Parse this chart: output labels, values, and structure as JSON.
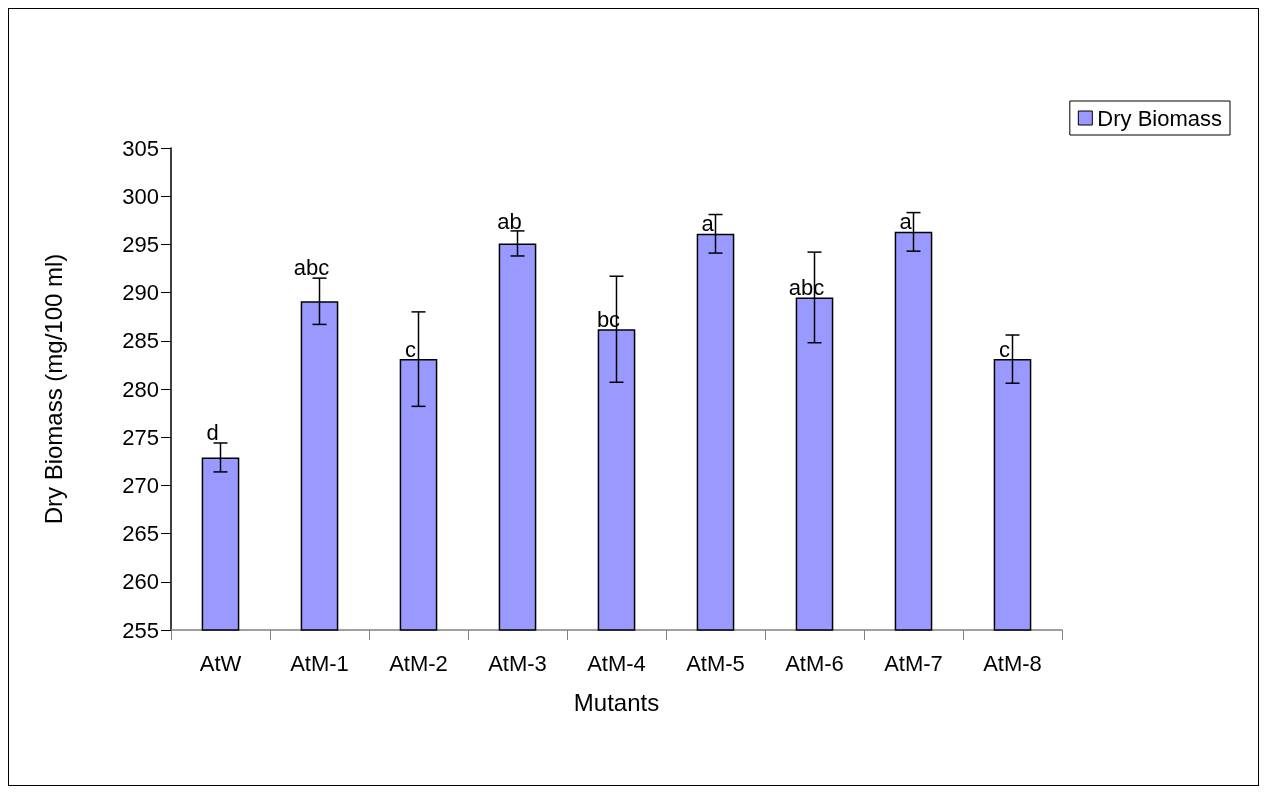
{
  "chart_data": {
    "type": "bar",
    "xlabel": "Mutants",
    "ylabel": "Dry Biomass (mg/100 ml)",
    "categories": [
      "AtW",
      "AtM-1",
      "AtM-2",
      "AtM-3",
      "AtM-4",
      "AtM-5",
      "AtM-6",
      "AtM-7",
      "AtM-8"
    ],
    "series": [
      {
        "name": "Dry Biomass",
        "color": "#9999ff",
        "values": [
          272.9,
          289.1,
          283.1,
          295.1,
          286.2,
          296.1,
          289.5,
          296.3,
          283.1
        ],
        "errors": [
          1.5,
          2.4,
          4.9,
          1.3,
          5.5,
          2.0,
          4.7,
          2.0,
          2.5
        ]
      }
    ],
    "ylim": [
      255,
      305
    ],
    "yticks": [
      255,
      260,
      265,
      270,
      275,
      280,
      285,
      290,
      295,
      300,
      305
    ],
    "grid": false,
    "legend": "top right",
    "annotations": [
      {
        "text": "d",
        "x": "AtW",
        "y": 274.4
      },
      {
        "text": "abc",
        "x": "AtM-1",
        "y": 291.6
      },
      {
        "text": "c",
        "x": "AtM-2",
        "y": 283.1
      },
      {
        "text": "ab",
        "x": "AtM-3",
        "y": 296.3
      },
      {
        "text": "bc",
        "x": "AtM-4",
        "y": 286.2
      },
      {
        "text": "a",
        "x": "AtM-5",
        "y": 296.1
      },
      {
        "text": "abc",
        "x": "AtM-6",
        "y": 289.5
      },
      {
        "text": "a",
        "x": "AtM-7",
        "y": 296.3
      },
      {
        "text": "c",
        "x": "AtM-8",
        "y": 283.1
      }
    ]
  }
}
